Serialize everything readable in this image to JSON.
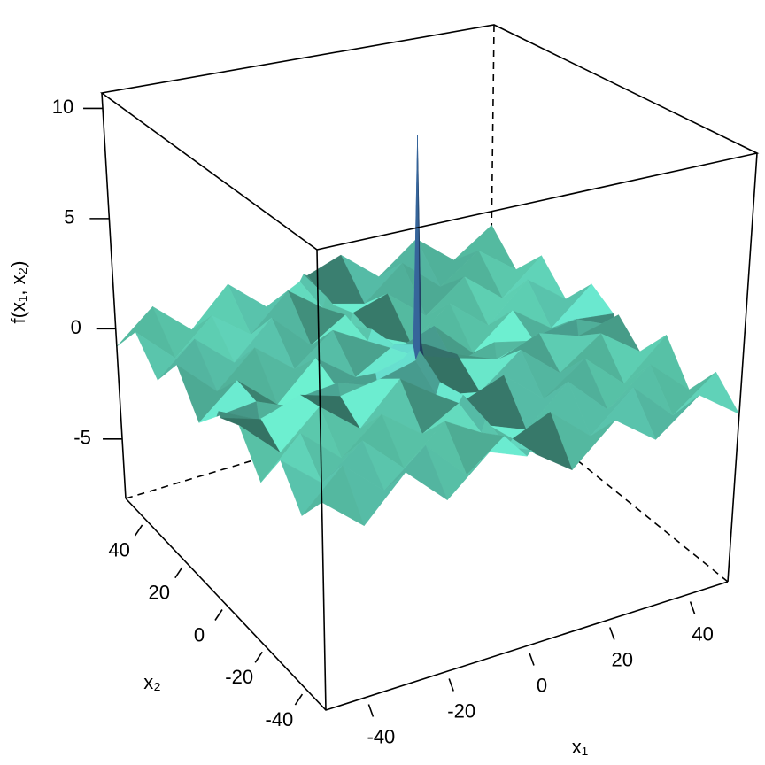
{
  "chart_data": {
    "type": "surface3d",
    "xlabel": "x₁",
    "ylabel": "x₂",
    "zlabel": "f(x₁, x₂)",
    "xlim": [
      -50,
      50
    ],
    "ylim": [
      -50,
      50
    ],
    "zlim": [
      -7.7,
      10.7
    ],
    "xticks": [
      -40,
      -20,
      0,
      20,
      40
    ],
    "yticks": [
      -40,
      -20,
      0,
      20,
      40
    ],
    "zticks": [
      -5,
      0,
      5,
      10
    ],
    "colors": [
      "#5fd6a8",
      "#2f4f9e"
    ],
    "x": [
      -50,
      -40,
      -30,
      -20,
      -10,
      -1,
      0,
      1,
      10,
      20,
      30,
      40,
      50
    ],
    "y": [
      -50,
      -40,
      -30,
      -20,
      -10,
      -1,
      0,
      1,
      10,
      20,
      30,
      40,
      50
    ],
    "z": [
      [
        0.6,
        -0.8,
        0.9,
        -0.7,
        0.8,
        0.2,
        0.4,
        0.2,
        -0.9,
        0.7,
        -0.6,
        0.8,
        -0.5
      ],
      [
        -0.7,
        0.9,
        -0.6,
        0.8,
        -0.9,
        0.3,
        -0.2,
        0.1,
        0.8,
        -0.7,
        0.9,
        -0.8,
        0.6
      ],
      [
        0.8,
        -0.6,
        0.7,
        -0.9,
        0.6,
        -0.3,
        0.2,
        -0.1,
        -0.7,
        0.9,
        -0.8,
        0.7,
        -0.9
      ],
      [
        -0.9,
        0.7,
        -0.8,
        0.6,
        -0.7,
        0.2,
        0.5,
        0.3,
        0.9,
        -0.6,
        0.7,
        -0.9,
        0.8
      ],
      [
        0.7,
        -0.9,
        0.6,
        -0.8,
        0.9,
        -0.2,
        0.3,
        -0.3,
        -0.6,
        0.8,
        -0.7,
        0.6,
        -0.7
      ],
      [
        0.3,
        -0.2,
        0.4,
        -0.1,
        0.2,
        0.6,
        1.0,
        0.7,
        0.2,
        -0.3,
        0.4,
        -0.2,
        0.3
      ],
      [
        0.5,
        -0.3,
        0.2,
        0.4,
        -0.2,
        1.1,
        10.5,
        1.2,
        0.3,
        -0.4,
        0.2,
        0.5,
        -0.3
      ],
      [
        0.2,
        0.4,
        -0.3,
        0.2,
        0.3,
        0.7,
        1.1,
        0.6,
        -0.2,
        0.3,
        -0.1,
        0.4,
        0.2
      ],
      [
        -0.8,
        0.6,
        -0.9,
        0.7,
        -0.6,
        0.3,
        0.4,
        0.2,
        0.8,
        -0.9,
        0.6,
        -0.7,
        0.9
      ],
      [
        0.9,
        -0.7,
        0.8,
        -0.6,
        0.7,
        -0.2,
        0.3,
        -0.1,
        -0.8,
        0.6,
        -0.9,
        0.8,
        -0.6
      ],
      [
        -0.6,
        0.8,
        -0.7,
        0.9,
        -0.8,
        0.2,
        -0.3,
        0.2,
        0.7,
        -0.8,
        0.6,
        -0.9,
        0.7
      ],
      [
        0.7,
        -0.9,
        0.6,
        -0.7,
        0.9,
        -0.3,
        0.2,
        -0.2,
        -0.6,
        0.9,
        -0.7,
        0.6,
        -0.8
      ],
      [
        -0.8,
        0.6,
        -0.9,
        0.8,
        -0.7,
        0.1,
        0.4,
        0.3,
        0.9,
        -0.6,
        0.8,
        -0.7,
        0.6
      ]
    ]
  }
}
